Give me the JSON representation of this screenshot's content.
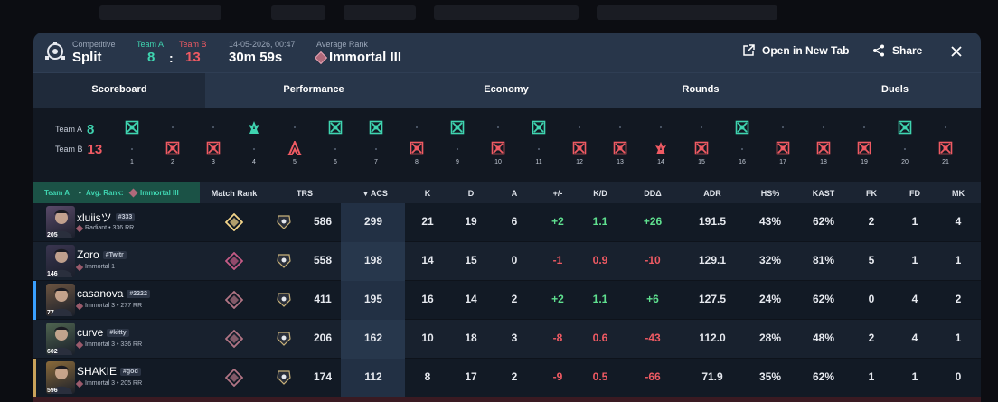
{
  "header": {
    "mode_label": "Competitive",
    "map": "Split",
    "team_a_label": "Team A",
    "team_b_label": "Team B",
    "team_a_score": "8",
    "team_b_score": "13",
    "colon": ":",
    "datetime": "14-05-2026, 00:47",
    "duration": "30m 59s",
    "avg_rank_label": "Average Rank",
    "avg_rank": "Immortal III",
    "open_new_tab": "Open in New Tab",
    "share": "Share"
  },
  "tabs": [
    "Scoreboard",
    "Performance",
    "Economy",
    "Rounds",
    "Duels"
  ],
  "active_tab": "Scoreboard",
  "timeline": {
    "team_a_label": "Team A",
    "team_b_label": "Team B",
    "team_a_score": "8",
    "team_b_score": "13",
    "rounds": [
      {
        "n": "1",
        "winner": "A",
        "type": "elim"
      },
      {
        "n": "2",
        "winner": "B",
        "type": "elim"
      },
      {
        "n": "3",
        "winner": "B",
        "type": "elim"
      },
      {
        "n": "4",
        "winner": "A",
        "type": "spike"
      },
      {
        "n": "5",
        "winner": "B",
        "type": "defuse"
      },
      {
        "n": "6",
        "winner": "A",
        "type": "elim"
      },
      {
        "n": "7",
        "winner": "A",
        "type": "elim"
      },
      {
        "n": "8",
        "winner": "B",
        "type": "elim"
      },
      {
        "n": "9",
        "winner": "A",
        "type": "elim"
      },
      {
        "n": "10",
        "winner": "B",
        "type": "elim"
      },
      {
        "n": "11",
        "winner": "A",
        "type": "elim"
      },
      {
        "n": "12",
        "winner": "B",
        "type": "elim"
      },
      {
        "n": "13",
        "winner": "B",
        "type": "elim"
      },
      {
        "n": "14",
        "winner": "B",
        "type": "spike"
      },
      {
        "n": "15",
        "winner": "B",
        "type": "elim"
      },
      {
        "n": "16",
        "winner": "A",
        "type": "elim"
      },
      {
        "n": "17",
        "winner": "B",
        "type": "elim"
      },
      {
        "n": "18",
        "winner": "B",
        "type": "elim"
      },
      {
        "n": "19",
        "winner": "B",
        "type": "elim"
      },
      {
        "n": "20",
        "winner": "A",
        "type": "elim"
      },
      {
        "n": "21",
        "winner": "B",
        "type": "elim"
      }
    ]
  },
  "table": {
    "team_label": "Team A",
    "avg_rank_label": "Avg. Rank:",
    "avg_rank": "Immortal III",
    "columns": [
      "Match Rank",
      "TRS",
      "ACS",
      "K",
      "D",
      "A",
      "+/-",
      "K/D",
      "DDΔ",
      "ADR",
      "HS%",
      "KAST",
      "FK",
      "FD",
      "MK"
    ],
    "rows": [
      {
        "name": "xluiisツ",
        "tag": "#333",
        "sub": "Radiant • 336 RR",
        "level": "205",
        "trs": "586",
        "acs": "299",
        "k": "21",
        "d": "19",
        "a": "6",
        "pm": "+2",
        "kd": "1.1",
        "dd": "+26",
        "adr": "191.5",
        "hs": "43%",
        "kast": "62%",
        "fk": "2",
        "fd": "1",
        "mk": "4",
        "avatar": "#5a4a6a",
        "rankcolor": "#f3d58a"
      },
      {
        "name": "Zoro",
        "tag": "#Twitr",
        "sub": "Immortal 1",
        "level": "146",
        "trs": "558",
        "acs": "198",
        "k": "14",
        "d": "15",
        "a": "0",
        "pm": "-1",
        "kd": "0.9",
        "dd": "-10",
        "adr": "129.1",
        "hs": "32%",
        "kast": "81%",
        "fk": "5",
        "fd": "1",
        "mk": "1",
        "avatar": "#3a3550",
        "rankcolor": "#c65b86"
      },
      {
        "name": "casanova",
        "tag": "#2222",
        "sub": "Immortal 3 • 277 RR",
        "level": "77",
        "trs": "411",
        "acs": "195",
        "k": "16",
        "d": "14",
        "a": "2",
        "pm": "+2",
        "kd": "1.1",
        "dd": "+6",
        "adr": "127.5",
        "hs": "24%",
        "kast": "62%",
        "fk": "0",
        "fd": "4",
        "mk": "2",
        "avatar": "#6b5440",
        "rankcolor": "#b27585"
      },
      {
        "name": "curve",
        "tag": "#kitty",
        "sub": "Immortal 3 • 336 RR",
        "level": "602",
        "trs": "206",
        "acs": "162",
        "k": "10",
        "d": "18",
        "a": "3",
        "pm": "-8",
        "kd": "0.6",
        "dd": "-43",
        "adr": "112.0",
        "hs": "28%",
        "kast": "48%",
        "fk": "2",
        "fd": "4",
        "mk": "1",
        "avatar": "#4f6550",
        "rankcolor": "#b27585"
      },
      {
        "name": "SHAKIE",
        "tag": "#god",
        "sub": "Immortal 3 • 205 RR",
        "level": "596",
        "trs": "174",
        "acs": "112",
        "k": "8",
        "d": "17",
        "a": "2",
        "pm": "-9",
        "kd": "0.5",
        "dd": "-66",
        "adr": "71.9",
        "hs": "35%",
        "kast": "62%",
        "fk": "1",
        "fd": "1",
        "mk": "0",
        "avatar": "#8a6a3a",
        "rankcolor": "#b27585"
      }
    ]
  },
  "colors": {
    "team_a": "#3fd4b0",
    "team_b": "#ef5a63",
    "accent": "#ef5a63",
    "positive": "#5fe08f"
  }
}
